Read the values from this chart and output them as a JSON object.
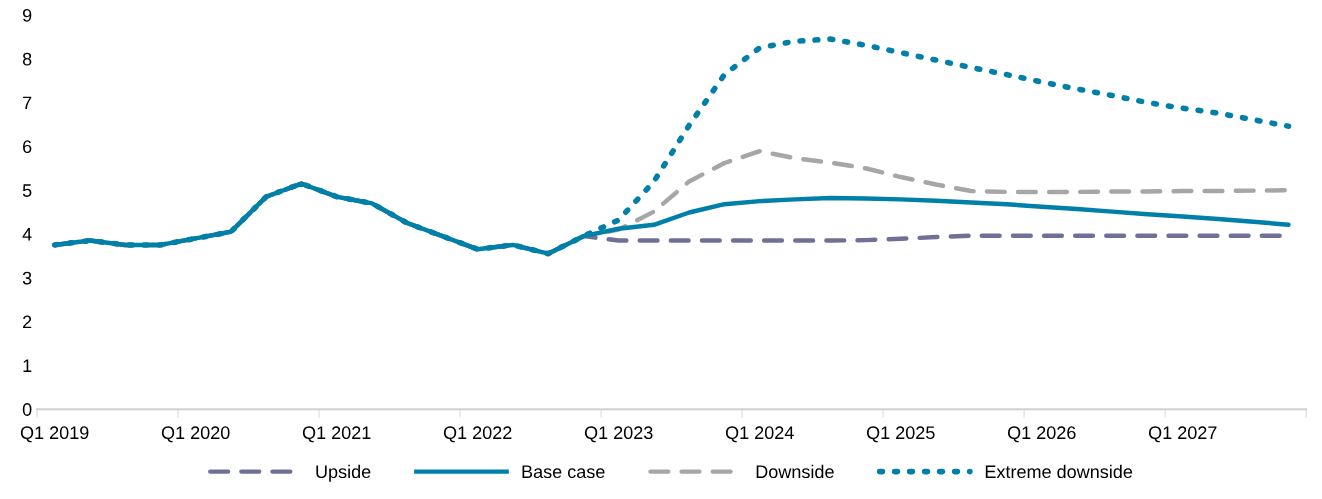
{
  "chart_data": {
    "type": "line",
    "categories": [
      "Q1 2019",
      null,
      null,
      null,
      "Q1 2020",
      null,
      null,
      null,
      "Q1 2021",
      null,
      null,
      null,
      "Q1 2022",
      null,
      null,
      null,
      "Q1 2023",
      null,
      null,
      null,
      "Q1 2024",
      null,
      null,
      null,
      "Q1 2025",
      null,
      null,
      null,
      "Q1 2026",
      null,
      null,
      null,
      "Q1 2027",
      null,
      null,
      null
    ],
    "ylim": [
      0,
      9
    ],
    "yticks": [
      0,
      1,
      2,
      3,
      4,
      5,
      6,
      7,
      8,
      9
    ],
    "grid": false,
    "legend": "bottom",
    "marker": "none",
    "series": [
      {
        "name": "Upside",
        "color": "#6e7195",
        "line_style": "dashed",
        "values": [
          3.75,
          3.85,
          3.75,
          3.75,
          3.9,
          4.05,
          4.85,
          5.15,
          4.85,
          4.7,
          4.25,
          3.95,
          3.65,
          3.75,
          3.55,
          3.95,
          3.85,
          3.85,
          3.85,
          3.85,
          3.85,
          3.85,
          3.85,
          3.86,
          3.89,
          3.93,
          3.96,
          3.96,
          3.96,
          3.96,
          3.96,
          3.96,
          3.96,
          3.96,
          3.96,
          3.96
        ]
      },
      {
        "name": "Base case",
        "color": "#0080a8",
        "line_style": "solid",
        "values": [
          3.75,
          3.85,
          3.75,
          3.75,
          3.9,
          4.05,
          4.85,
          5.15,
          4.85,
          4.7,
          4.25,
          3.95,
          3.65,
          3.75,
          3.55,
          3.95,
          4.12,
          4.21,
          4.49,
          4.68,
          4.75,
          4.79,
          4.82,
          4.81,
          4.79,
          4.76,
          4.72,
          4.68,
          4.62,
          4.57,
          4.51,
          4.45,
          4.4,
          4.34,
          4.28,
          4.21
        ]
      },
      {
        "name": "Downside",
        "color": "#a6a6a6",
        "line_style": "dashed",
        "values": [
          3.75,
          3.85,
          3.75,
          3.75,
          3.9,
          4.05,
          4.85,
          5.15,
          4.85,
          4.7,
          4.25,
          3.95,
          3.65,
          3.75,
          3.55,
          3.95,
          4.1,
          4.51,
          5.2,
          5.62,
          5.89,
          5.73,
          5.63,
          5.5,
          5.3,
          5.13,
          4.98,
          4.96,
          4.96,
          4.96,
          4.97,
          4.97,
          4.98,
          4.98,
          4.99,
          5.0
        ]
      },
      {
        "name": "Extreme downside",
        "color": "#0080a8",
        "line_style": "dotted",
        "values": [
          3.75,
          3.85,
          3.75,
          3.75,
          3.9,
          4.05,
          4.85,
          5.15,
          4.85,
          4.7,
          4.25,
          3.95,
          3.65,
          3.75,
          3.55,
          3.95,
          4.32,
          5.2,
          6.48,
          7.64,
          8.25,
          8.4,
          8.45,
          8.31,
          8.14,
          7.97,
          7.8,
          7.64,
          7.47,
          7.31,
          7.16,
          7.0,
          6.87,
          6.76,
          6.61,
          6.46
        ]
      }
    ]
  }
}
